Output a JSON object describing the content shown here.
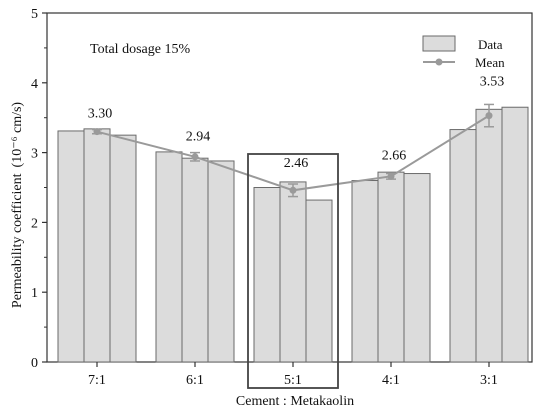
{
  "chart_data": {
    "type": "bar",
    "categories": [
      "7:1",
      "6:1",
      "5:1",
      "4:1",
      "3:1"
    ],
    "series": [
      {
        "values": [
          3.31,
          3.01,
          2.5,
          2.6,
          3.33
        ]
      },
      {
        "values": [
          3.34,
          2.92,
          2.58,
          2.72,
          3.62
        ]
      },
      {
        "values": [
          3.25,
          2.88,
          2.32,
          2.7,
          3.65
        ]
      }
    ],
    "mean": {
      "name": "Mean",
      "values": [
        3.3,
        2.94,
        2.46,
        2.66,
        3.53
      ],
      "labels": [
        "3.30",
        "2.94",
        "2.46",
        "2.66",
        "3.53"
      ],
      "errors": [
        0.03,
        0.06,
        0.09,
        0.04,
        0.16
      ]
    },
    "legend": {
      "data_label": "Data",
      "mean_label": "Mean",
      "placement": "top-right"
    },
    "annotation": "Total dosage 15%",
    "xlabel": "Cement : Metakaolin",
    "ylabel": "Permeability coefficient",
    "yunit": "(10⁻⁶ cm/s)",
    "ylim": [
      0,
      5
    ],
    "yticks": [
      "0",
      "1",
      "2",
      "3",
      "4",
      "5"
    ],
    "highlight_category": "5:1",
    "colors": {
      "bar_fill": "#dcdcdc",
      "bar_stroke": "#6a6a6a",
      "mean_line": "#9a9a9a",
      "axis": "#333333",
      "box": "#444444"
    }
  }
}
